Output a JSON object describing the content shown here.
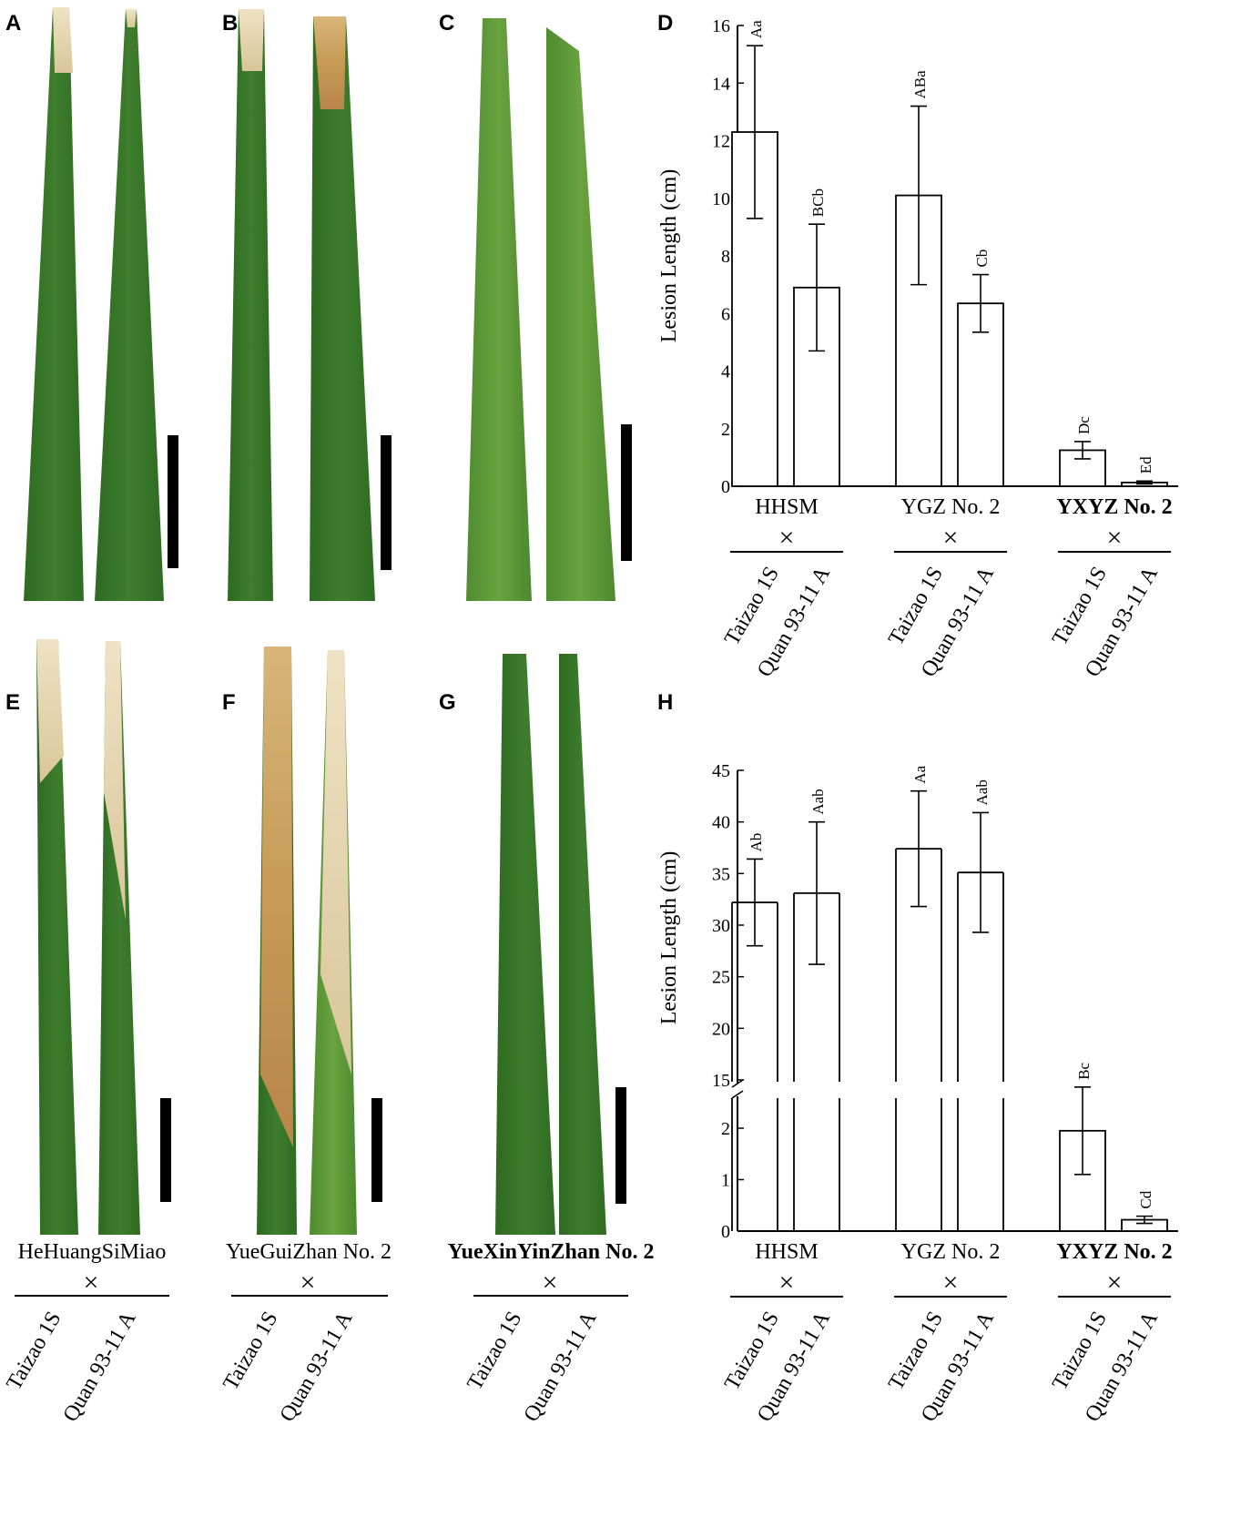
{
  "panels": {
    "A": "A",
    "B": "B",
    "C": "C",
    "D": "D",
    "E": "E",
    "F": "F",
    "G": "G",
    "H": "H"
  },
  "leaf_parents": [
    "HeHuangSiMiao",
    "YueGuiZhan No. 2",
    "YueXinYinZhan No. 2"
  ],
  "crosses": [
    "Taizao 1S",
    "Quan 93-11 A"
  ],
  "cross_symbol": "×",
  "colors": {
    "leaf_green": "#3f7a2c",
    "leaf_light": "#6fa44a",
    "lesion_tan": "#e8d9b4",
    "lesion_brown": "#b07a3a",
    "bar_fill": "#ffffff",
    "axis": "#000000"
  },
  "chart_data": [
    {
      "type": "bar",
      "panel": "D",
      "ylabel": "Lesion Length (cm)",
      "ylim": [
        0,
        16
      ],
      "yticks": [
        0,
        2,
        4,
        6,
        8,
        10,
        12,
        14,
        16
      ],
      "groups": [
        "HHSM",
        "YGZ No. 2",
        "YXYZ No. 2"
      ],
      "bold_group": "YXYZ No. 2",
      "series": [
        {
          "name": "Taizao 1S",
          "values": [
            12.3,
            10.1,
            1.25
          ],
          "errors": [
            3.0,
            3.1,
            0.3
          ],
          "letters": [
            "Aa",
            "ABa",
            "Dc"
          ]
        },
        {
          "name": "Quan 93-11 A",
          "values": [
            6.9,
            6.35,
            0.13
          ],
          "errors": [
            2.2,
            1.0,
            0.05
          ],
          "letters": [
            "BCb",
            "Cb",
            "Ed"
          ]
        }
      ]
    },
    {
      "type": "bar",
      "panel": "H",
      "ylabel": "Lesion Length (cm)",
      "broken_axis": true,
      "ylim_lower": [
        0,
        2.5
      ],
      "ylim_upper": [
        15,
        45
      ],
      "yticks_lower": [
        0,
        1,
        2
      ],
      "yticks_upper": [
        15,
        20,
        25,
        30,
        35,
        40,
        45
      ],
      "groups": [
        "HHSM",
        "YGZ No. 2",
        "YXYZ No. 2"
      ],
      "bold_group": "YXYZ No. 2",
      "series": [
        {
          "name": "Taizao 1S",
          "values": [
            32.2,
            37.4,
            1.95
          ],
          "errors": [
            4.2,
            5.6,
            0.85
          ],
          "letters": [
            "Ab",
            "Aa",
            "Bc"
          ]
        },
        {
          "name": "Quan 93-11 A",
          "values": [
            33.1,
            35.1,
            0.22
          ],
          "errors": [
            6.9,
            5.8,
            0.07
          ],
          "letters": [
            "Aab",
            "Aab",
            "Cd"
          ]
        }
      ]
    }
  ]
}
